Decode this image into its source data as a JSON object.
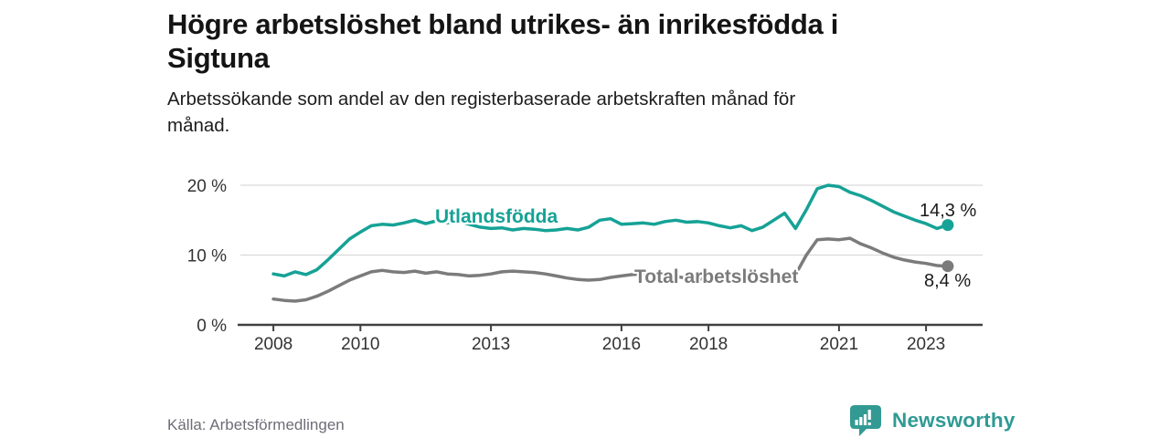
{
  "header": {
    "title_lines": [
      "Högre arbetslöshet bland utrikes- än inrikesfödda i",
      "Sigtuna"
    ],
    "subtitle_lines": [
      "Arbetssökande som andel av den registerbaserade arbetskraften månad för",
      "månad."
    ]
  },
  "footer": {
    "source": "Källa: Arbetsförmedlingen",
    "brand": "Newsworthy"
  },
  "colors": {
    "accent_teal": "#16a296",
    "series_gray": "#7b7b7b",
    "grid": "#d9d9d9",
    "axis": "#404040",
    "tick_text": "#333333",
    "text_dark": "#1a1a1a",
    "source_text": "#6d6d76",
    "logo_teal": "#2f9a94"
  },
  "chart_data": {
    "type": "line",
    "title": "Högre arbetslöshet bland utrikes- än inrikesfödda i Sigtuna",
    "subtitle": "Arbetssökande som andel av den registerbaserade arbetskraften månad för månad.",
    "unit": "%",
    "x_start": 2008.0,
    "x_step_years": 0.25,
    "xlim": [
      2007.2,
      2024.3
    ],
    "ylim": [
      0,
      21.5
    ],
    "grid": "horizontal",
    "legend_position": "inline-labels",
    "x_ticks": [
      2008,
      2010,
      2013,
      2016,
      2018,
      2021,
      2023
    ],
    "x_tick_labels": [
      "2008",
      "2010",
      "2013",
      "2016",
      "2018",
      "2021",
      "2023"
    ],
    "y_ticks": [
      0,
      10,
      20
    ],
    "y_tick_labels": [
      "0 %",
      "10 %",
      "20 %"
    ],
    "series": [
      {
        "name": "Utlandsfödda",
        "color": "#16a296",
        "end_value": 14.3,
        "end_label": "14,3 %",
        "values": [
          7.3,
          7.0,
          7.6,
          7.2,
          7.9,
          9.3,
          10.8,
          12.3,
          13.3,
          14.2,
          14.4,
          14.3,
          14.6,
          15.0,
          14.5,
          14.9,
          14.6,
          14.9,
          14.4,
          14.0,
          13.8,
          13.9,
          13.6,
          13.8,
          13.7,
          13.5,
          13.6,
          13.8,
          13.6,
          14.0,
          15.0,
          15.2,
          14.4,
          14.5,
          14.6,
          14.4,
          14.8,
          15.0,
          14.7,
          14.8,
          14.6,
          14.2,
          13.9,
          14.2,
          13.5,
          14.0,
          15.0,
          16.0,
          13.8,
          16.5,
          19.5,
          20.0,
          19.8,
          19.0,
          18.5,
          17.8,
          17.0,
          16.2,
          15.6,
          15.0,
          14.5,
          13.8,
          14.3
        ]
      },
      {
        "name": "Total arbetslöshet",
        "color": "#7b7b7b",
        "end_value": 8.4,
        "end_label": "8,4 %",
        "values": [
          3.7,
          3.5,
          3.4,
          3.6,
          4.1,
          4.8,
          5.6,
          6.4,
          7.0,
          7.6,
          7.8,
          7.6,
          7.5,
          7.7,
          7.4,
          7.6,
          7.3,
          7.2,
          7.0,
          7.1,
          7.3,
          7.6,
          7.7,
          7.6,
          7.5,
          7.3,
          7.0,
          6.7,
          6.5,
          6.4,
          6.5,
          6.8,
          7.0,
          7.2,
          7.3,
          7.2,
          7.0,
          6.9,
          6.7,
          6.6,
          6.5,
          6.4,
          6.3,
          6.4,
          6.3,
          6.4,
          6.6,
          6.9,
          7.2,
          10.0,
          12.2,
          12.3,
          12.2,
          12.4,
          11.6,
          11.0,
          10.3,
          9.7,
          9.3,
          9.0,
          8.8,
          8.5,
          8.4
        ]
      }
    ]
  }
}
